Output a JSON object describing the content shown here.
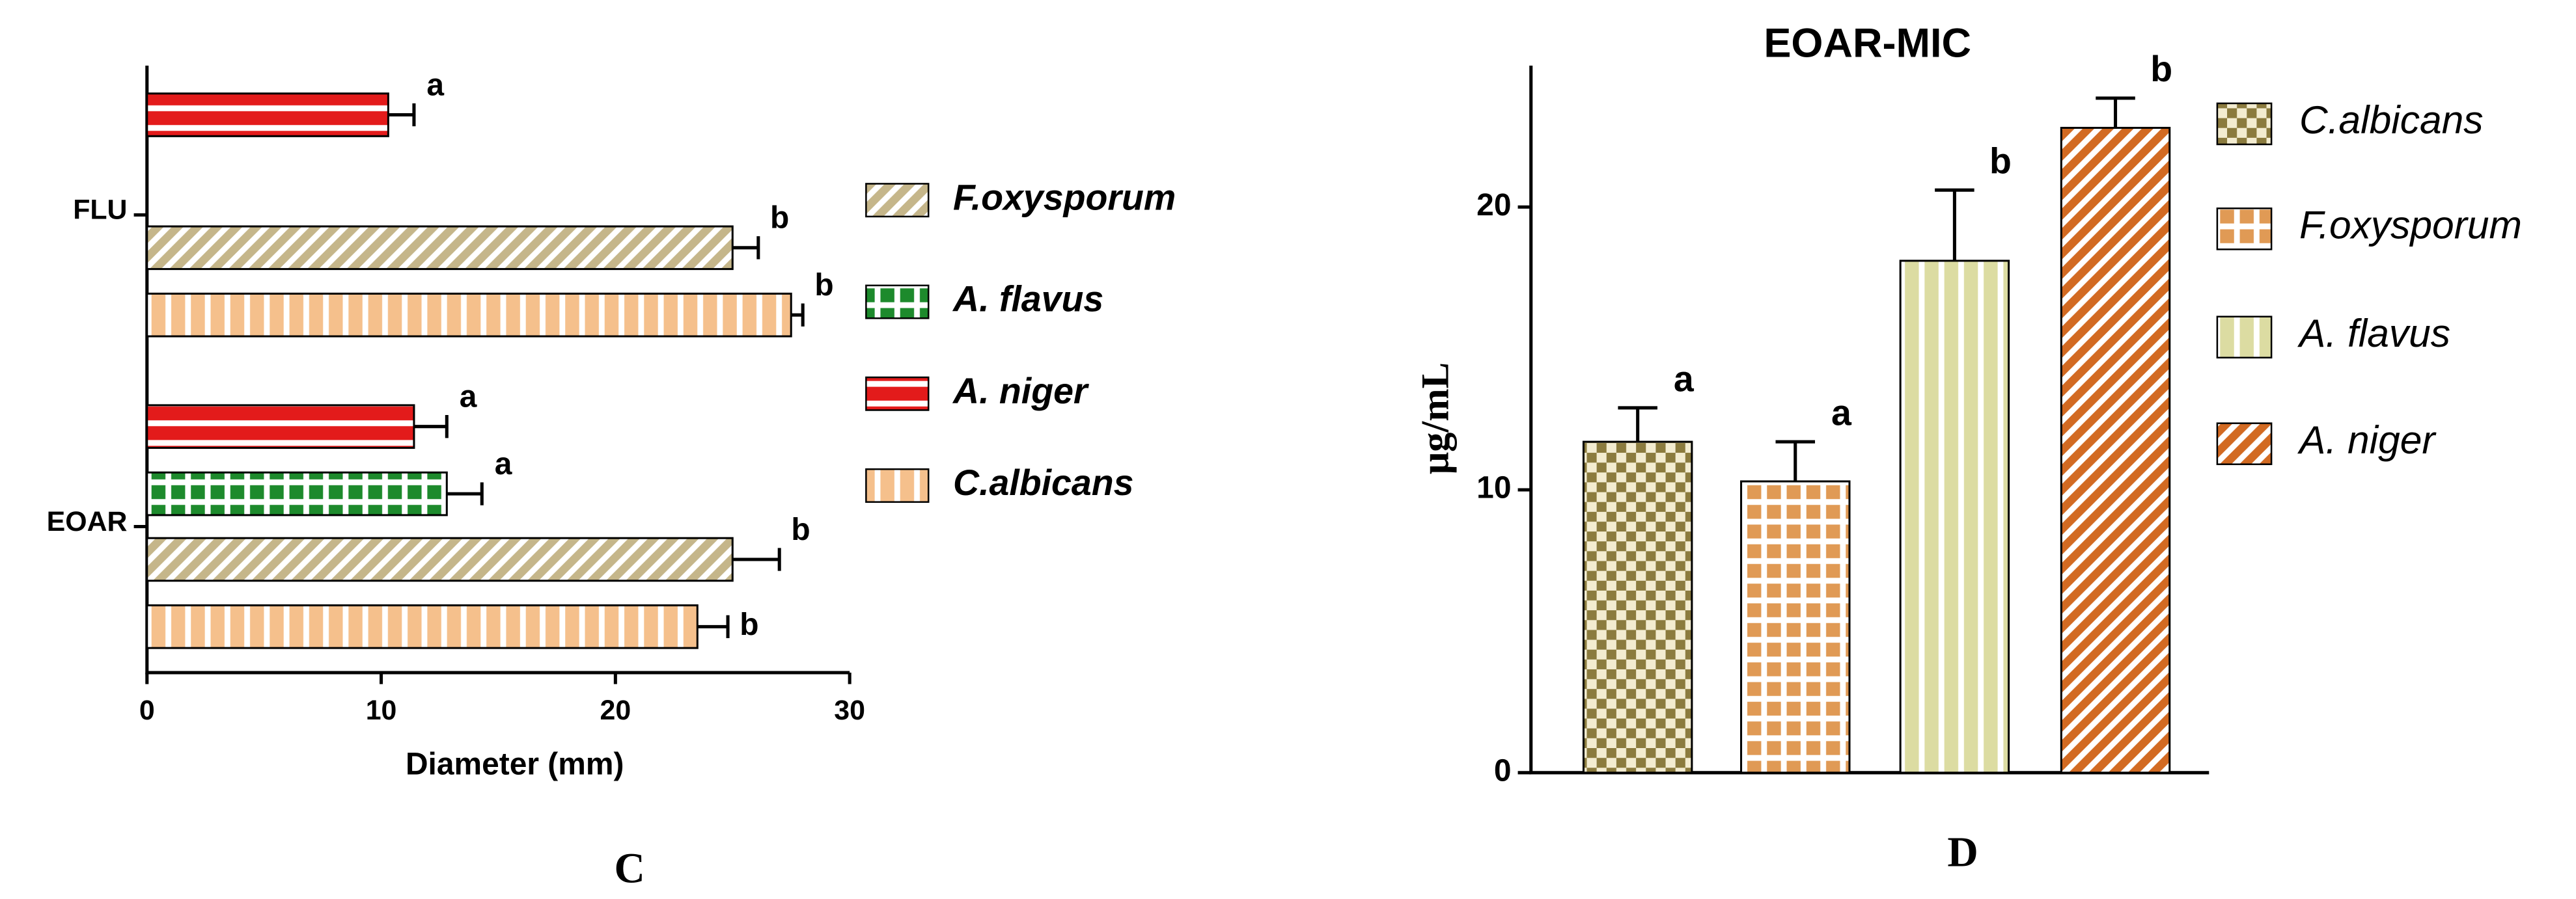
{
  "chart_data": [
    {
      "type": "hbar",
      "panel": "C",
      "x_label": "Diameter (mm)",
      "categories": [
        "FLU",
        "EOAR"
      ],
      "xlim": [
        0,
        30
      ],
      "xticks": [
        0,
        10,
        20,
        30
      ],
      "series": [
        {
          "name": "F.oxysporum",
          "color": "#c5b68a",
          "pattern": "diagonal",
          "values": [
            25,
            25
          ],
          "errors": [
            1.1,
            2
          ],
          "letters": [
            "b",
            "b"
          ]
        },
        {
          "name": "A.  flavus",
          "color": "#1d8a2c",
          "pattern": "grid",
          "values": [
            null,
            12.8
          ],
          "errors": [
            null,
            1.5
          ],
          "letters": [
            null,
            "a"
          ]
        },
        {
          "name": "A. niger",
          "color": "#e31b1b",
          "pattern": "hstripe",
          "values": [
            10.3,
            11.4
          ],
          "errors": [
            1.1,
            1.4
          ],
          "letters": [
            "a",
            "a"
          ]
        },
        {
          "name": "C.albicans",
          "color": "#f5c08c",
          "pattern": "vstripe",
          "values": [
            27.5,
            23.5
          ],
          "errors": [
            0.5,
            1.3
          ],
          "letters": [
            "b",
            "b"
          ]
        }
      ]
    },
    {
      "type": "bar",
      "panel": "D",
      "title": "EOAR-MIC",
      "y_label": "μg/mL",
      "ylim": [
        0,
        25
      ],
      "yticks": [
        0,
        10,
        20
      ],
      "series": [
        {
          "name": "C.albicans",
          "color": "#8b7b3e",
          "pattern": "checker",
          "values": [
            11.7
          ],
          "errors": [
            1.2
          ],
          "letters": [
            "a"
          ]
        },
        {
          "name": "F.oxysporum",
          "color": "#e09a55",
          "pattern": "grid",
          "values": [
            10.3
          ],
          "errors": [
            1.4
          ],
          "letters": [
            "a"
          ]
        },
        {
          "name": "A. flavus",
          "color": "#dcdca2",
          "pattern": "vstripe",
          "values": [
            18.1
          ],
          "errors": [
            2.5
          ],
          "letters": [
            "b"
          ]
        },
        {
          "name": "A. niger",
          "color": "#d26a22",
          "pattern": "diagonal",
          "values": [
            22.8
          ],
          "errors": [
            1.05
          ],
          "letters": [
            "b"
          ]
        }
      ]
    }
  ]
}
